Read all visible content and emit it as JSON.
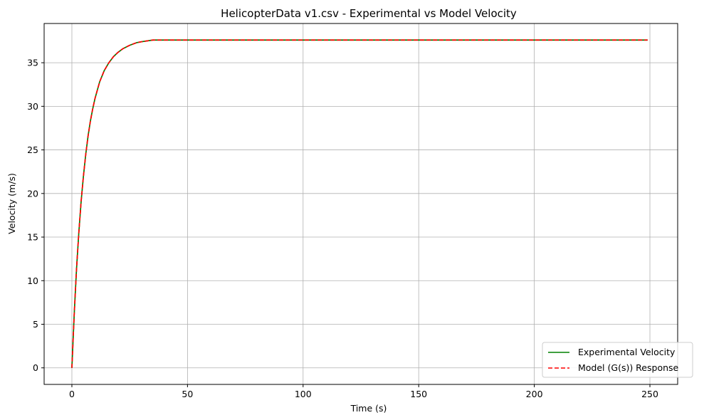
{
  "chart_data": {
    "type": "line",
    "title": "HelicopterData v1.csv - Experimental vs Model Velocity",
    "xlabel": "Time (s)",
    "ylabel": "Velocity (m/s)",
    "xlim": [
      -12,
      262
    ],
    "ylim": [
      -1.9,
      39.5
    ],
    "xticks": [
      0,
      50,
      100,
      150,
      200,
      250
    ],
    "yticks": [
      0,
      5,
      10,
      15,
      20,
      25,
      30,
      35
    ],
    "grid": true,
    "legend_position": "lower-right",
    "series": [
      {
        "name": "Experimental Velocity",
        "color": "#008000",
        "style": "solid",
        "x": [
          0,
          1,
          2,
          3,
          4,
          5,
          6,
          7,
          8,
          9,
          10,
          12,
          14,
          16,
          18,
          20,
          22,
          25,
          28,
          30,
          35,
          40,
          45,
          50,
          60,
          80,
          100,
          150,
          200,
          249
        ],
        "y": [
          0,
          6.1,
          11.3,
          15.5,
          19.1,
          22.0,
          24.5,
          26.6,
          28.3,
          29.7,
          30.9,
          32.8,
          34.1,
          35.0,
          35.7,
          36.2,
          36.6,
          37.0,
          37.3,
          37.4,
          37.6,
          37.6,
          37.6,
          37.6,
          37.6,
          37.6,
          37.6,
          37.6,
          37.6,
          37.6
        ]
      },
      {
        "name": "Model (G(s)) Response",
        "color": "#ff0000",
        "style": "dashed",
        "x": [
          0,
          1,
          2,
          3,
          4,
          5,
          6,
          7,
          8,
          9,
          10,
          12,
          14,
          16,
          18,
          20,
          22,
          25,
          28,
          30,
          35,
          40,
          45,
          50,
          60,
          80,
          100,
          150,
          200,
          249
        ],
        "y": [
          0,
          6.1,
          11.3,
          15.5,
          19.1,
          22.0,
          24.5,
          26.6,
          28.3,
          29.7,
          30.9,
          32.8,
          34.1,
          35.0,
          35.7,
          36.2,
          36.6,
          37.0,
          37.3,
          37.4,
          37.6,
          37.6,
          37.6,
          37.6,
          37.6,
          37.6,
          37.6,
          37.6,
          37.6,
          37.6
        ]
      }
    ]
  }
}
